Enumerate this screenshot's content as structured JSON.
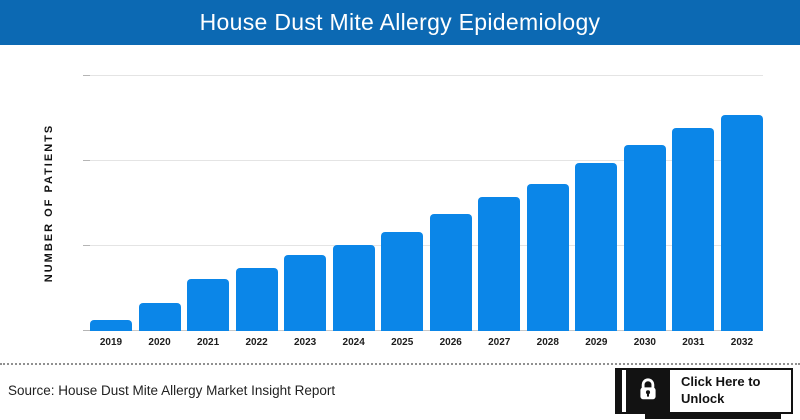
{
  "header": {
    "title": "House Dust Mite Allergy Epidemiology",
    "background_color": "#0c69b3"
  },
  "chart_data": {
    "type": "bar",
    "title": "House Dust Mite Allergy Epidemiology",
    "categories": [
      "2019",
      "2020",
      "2021",
      "2022",
      "2023",
      "2024",
      "2025",
      "2026",
      "2027",
      "2028",
      "2029",
      "2030",
      "2031",
      "2032"
    ],
    "values": [
      5,
      13,
      24,
      29,
      35,
      40,
      46,
      54,
      62,
      68,
      78,
      86,
      94,
      100
    ],
    "values_note": "relative bar heights in % of the 2032 bar; numeric y-axis tick labels are not shown in the chart",
    "xlabel": "",
    "ylabel": "NUMBER OF PATIENTS",
    "y_tick_labels": [],
    "grid": "horizontal gridlines on, 3 lines above baseline",
    "legend_position": "none",
    "bar_color": "#0b86e8",
    "gridline_color": "#e4e4e4"
  },
  "footer": {
    "source": "Source: House Dust Mite Allergy Market Insight Report",
    "unlock_button": {
      "label": "Click Here to Unlock",
      "icon": "lock-icon"
    }
  }
}
